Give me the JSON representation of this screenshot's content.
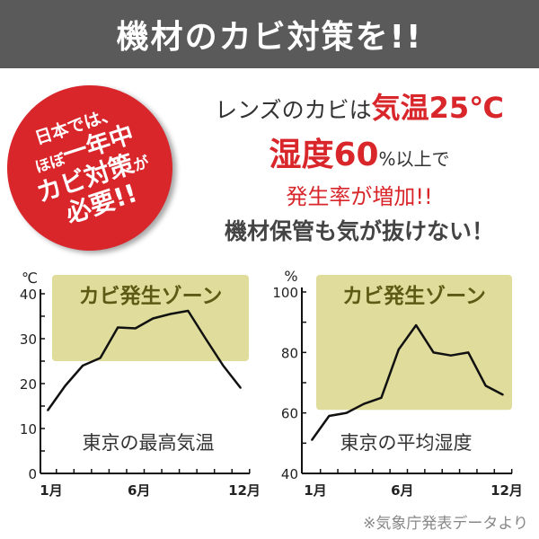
{
  "header": {
    "title": "機材のカビ対策を!!"
  },
  "badge": {
    "line1": "日本では、",
    "line2_prefix": "ほぼ",
    "line2_bold": "一年中",
    "line3_bold": "カビ対策",
    "line3_suffix": "が",
    "line4": "必要!!"
  },
  "message": {
    "line1_prefix": "レンズのカビは",
    "line1_bold": "気温25℃",
    "line2_bold": "湿度60",
    "line2_suffix": "%以上で",
    "line3": "発生率が増加!!",
    "line4": "機材保管も気が抜けない！"
  },
  "source_note": "※気象庁発表データより",
  "colors": {
    "header": "#5a5a5a",
    "accent": "#d8262b",
    "zone": "#e0dc9c",
    "zone_text": "#5c5a14"
  },
  "chart_data": [
    {
      "type": "line",
      "title": "東京の最高気温",
      "ylabel": "℃",
      "ylim": [
        0,
        40
      ],
      "yticks": [
        0,
        10,
        20,
        30,
        40
      ],
      "x": [
        1,
        2,
        3,
        4,
        5,
        6,
        7,
        8,
        9,
        10,
        11,
        12
      ],
      "xtick_labels": {
        "1": "1月",
        "6": "6月",
        "12": "12月"
      },
      "values": [
        14,
        19.5,
        24,
        25.7,
        32.5,
        32.3,
        34.5,
        35.5,
        36.2,
        30,
        24,
        19
      ],
      "zone": {
        "label": "カビ発生ゾーン",
        "from": 25,
        "to": 41
      }
    },
    {
      "type": "line",
      "title": "東京の平均湿度",
      "ylabel": "%",
      "ylim": [
        40,
        100
      ],
      "yticks": [
        40,
        60,
        80,
        100
      ],
      "x": [
        1,
        2,
        3,
        4,
        5,
        6,
        7,
        8,
        9,
        10,
        11,
        12
      ],
      "xtick_labels": {
        "1": "1月",
        "6": "6月",
        "12": "12月"
      },
      "values": [
        51,
        59,
        60,
        63,
        65,
        81,
        89,
        80,
        79,
        80,
        69,
        66
      ],
      "zone": {
        "label": "カビ発生ゾーン",
        "from": 61,
        "to": 100
      }
    }
  ]
}
